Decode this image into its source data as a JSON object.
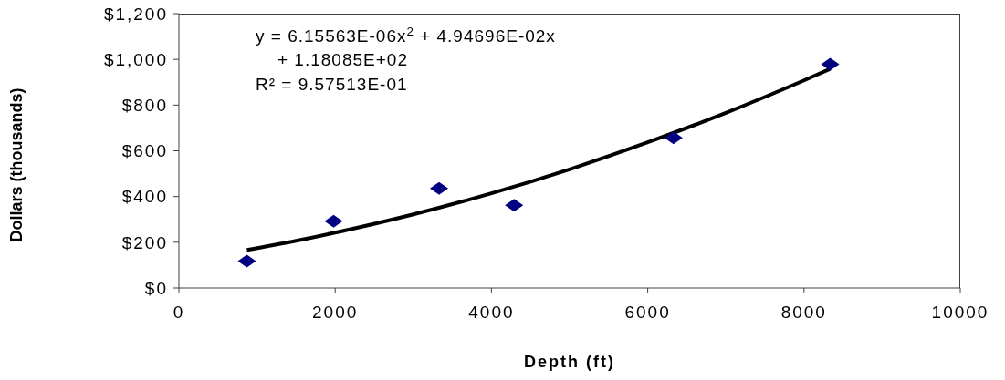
{
  "chart_data": {
    "type": "scatter",
    "xlabel": "Depth (ft)",
    "ylabel": "Dollars (thousands)",
    "annotations": [
      "y = 6.15563E-06x$^{2}$ + 4.94696E-02x",
      "+ 1.18085E+02",
      "R² = 9.57513E-01"
    ],
    "series": [
      {
        "color": "#000080",
        "marker": "diamond",
        "x": [
          870,
          1980,
          3330,
          4290,
          6330,
          8335
        ],
        "values": [
          118,
          292,
          436,
          362,
          657,
          979
        ]
      },
      {
        "type": "line",
        "color": "#000000",
        "marker": "none",
        "x": [
          870,
          1500,
          2000,
          3000,
          4000,
          5000,
          6000,
          7000,
          8000,
          8335
        ],
        "values": [
          166,
          206,
          242,
          322,
          414,
          519,
          637,
          766,
          908,
          958
        ]
      }
    ],
    "xlim": [
      0,
      10000
    ],
    "xticks": [
      0,
      2000,
      4000,
      6000,
      8000,
      10000
    ],
    "ylim": [
      0,
      1200
    ],
    "yticks": [
      {
        "value": 0,
        "label": "$0"
      },
      {
        "value": 200,
        "label": "$200"
      },
      {
        "value": 400,
        "label": "$400"
      },
      {
        "value": 600,
        "label": "$600"
      },
      {
        "value": 800,
        "label": "$800"
      },
      {
        "value": 1000,
        "label": "$1,000"
      },
      {
        "value": 1200,
        "label": "$1,200"
      }
    ],
    "grid": false,
    "line_style": "solid"
  }
}
